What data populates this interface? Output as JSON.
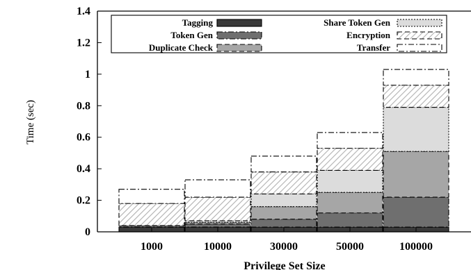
{
  "chart_data": {
    "type": "bar",
    "stacked": true,
    "xlabel": "Privilege Set Size",
    "ylabel": "Time (sec)",
    "ylim": [
      0,
      1.4
    ],
    "yticks": [
      "0",
      "0.2",
      "0.4",
      "0.6",
      "0.8",
      "1",
      "1.2",
      "1.4"
    ],
    "categories": [
      "1000",
      "10000",
      "30000",
      "50000",
      "100000"
    ],
    "legend_position": "top",
    "series": [
      {
        "name": "Tagging",
        "values": [
          0.03,
          0.03,
          0.03,
          0.03,
          0.03
        ],
        "fill": "#3a3a3a",
        "stroke": "solid"
      },
      {
        "name": "Token Gen",
        "values": [
          0.01,
          0.02,
          0.05,
          0.09,
          0.19
        ],
        "fill": "#6f6f6f",
        "stroke": "dashdot"
      },
      {
        "name": "Duplicate Check",
        "values": [
          0.0,
          0.01,
          0.08,
          0.13,
          0.29
        ],
        "fill": "#a6a6a6",
        "stroke": "dashed"
      },
      {
        "name": "Share Token Gen",
        "values": [
          0.0,
          0.01,
          0.08,
          0.14,
          0.28
        ],
        "fill": "#dcdcdc",
        "stroke": "dotted"
      },
      {
        "name": "Encryption",
        "values": [
          0.14,
          0.15,
          0.14,
          0.14,
          0.14
        ],
        "fill": "hatch",
        "stroke": "dashed"
      },
      {
        "name": "Transfer",
        "values": [
          0.09,
          0.11,
          0.1,
          0.1,
          0.1
        ],
        "fill": "#ffffff",
        "stroke": "dashdot"
      }
    ],
    "legend_columns": [
      [
        "Tagging",
        "Token Gen",
        "Duplicate Check"
      ],
      [
        "Share Token Gen",
        "Encryption",
        "Transfer"
      ]
    ]
  }
}
